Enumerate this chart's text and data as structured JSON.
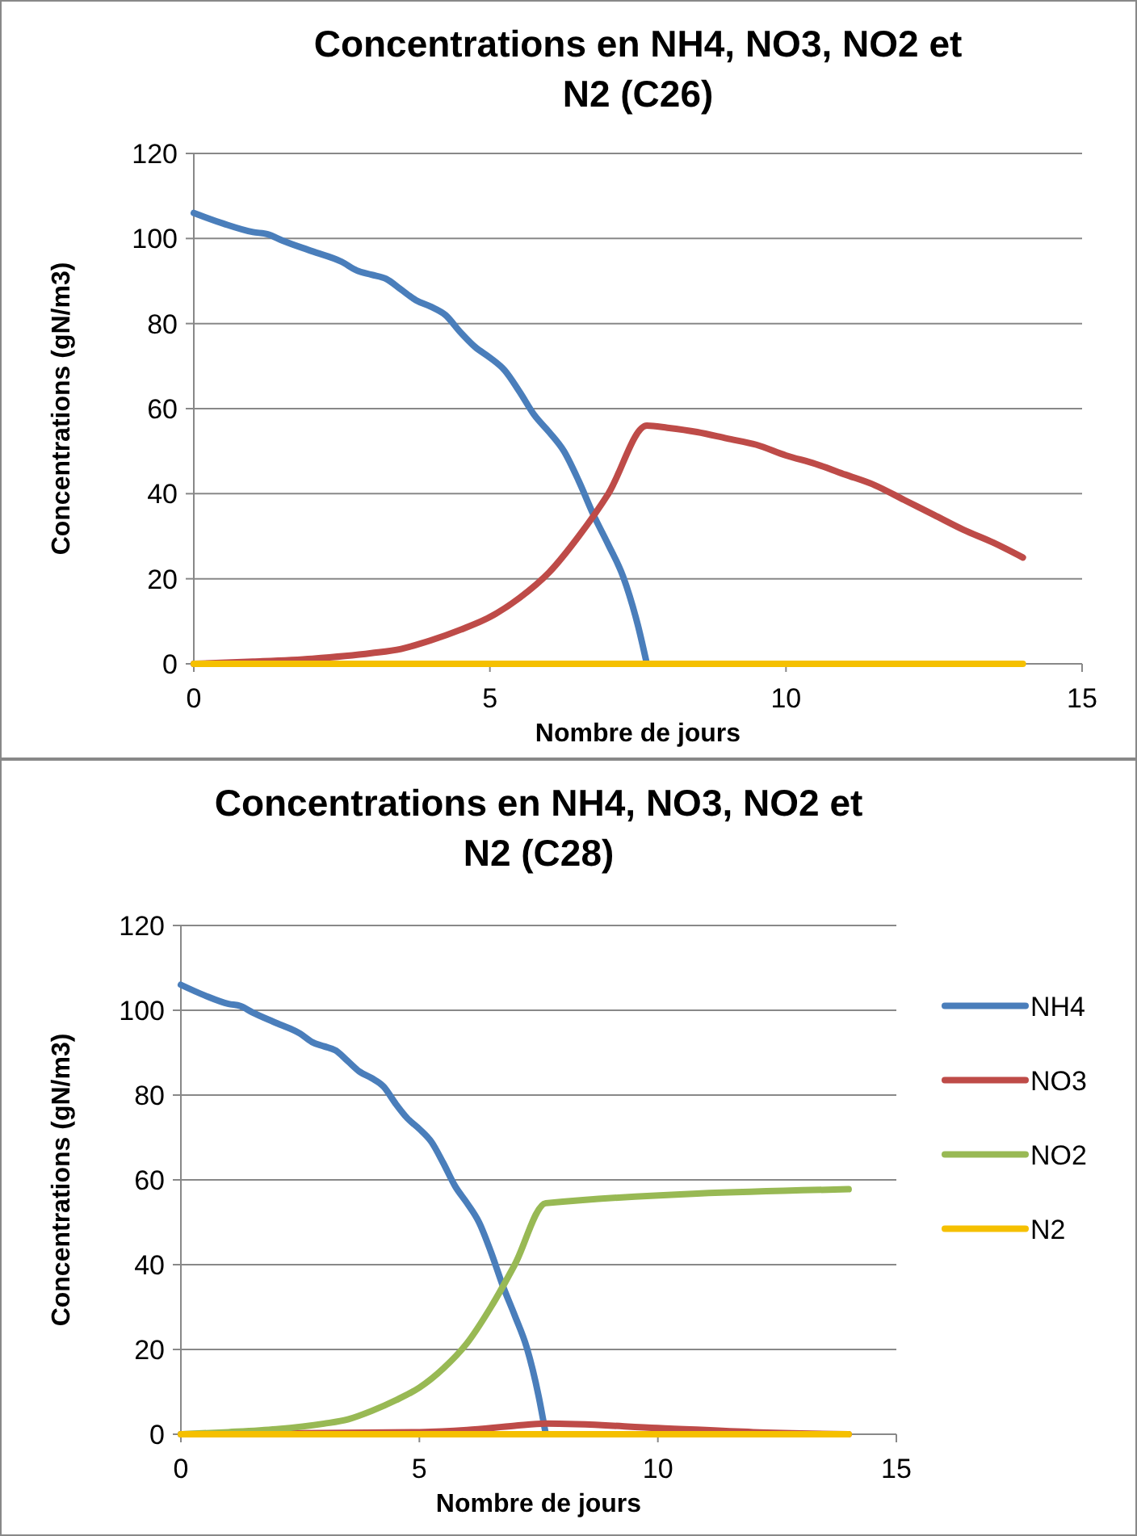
{
  "chart_data": [
    {
      "type": "line",
      "title": "Concentrations en NH4, NO3, NO2 et N2 (C26)",
      "xlabel": "Nombre de jours",
      "ylabel": "Concentrations (gN/m3)",
      "xlim": [
        0,
        15
      ],
      "xticks": [
        0,
        5,
        10,
        15
      ],
      "ylim": [
        0,
        120
      ],
      "yticks": [
        0,
        20,
        40,
        60,
        80,
        100,
        120
      ],
      "grid": "y",
      "legend": false,
      "marker": "none",
      "line_style": "solid",
      "series": [
        {
          "color": "#4a7ebb",
          "x": [
            0,
            0.5,
            1,
            1.25,
            1.5,
            2,
            2.5,
            2.75,
            3,
            3.25,
            3.5,
            3.75,
            4,
            4.25,
            4.5,
            4.75,
            5,
            5.25,
            5.5,
            5.75,
            6,
            6.25,
            6.5,
            6.75,
            7,
            7.25,
            7.5,
            7.65
          ],
          "values": [
            106,
            103.5,
            101.5,
            101,
            99.5,
            97,
            94.5,
            92.5,
            91.5,
            90.5,
            88,
            85.5,
            84,
            82,
            78,
            74.5,
            72,
            69,
            64,
            58.5,
            54.5,
            50,
            43,
            35,
            28,
            20.5,
            9,
            0
          ]
        },
        {
          "color": "#be4b48",
          "x": [
            0,
            1,
            2,
            3,
            3.5,
            4,
            4.5,
            5,
            5.5,
            6,
            6.5,
            7,
            7.65,
            8,
            8.5,
            9,
            9.5,
            10,
            10.5,
            11,
            11.5,
            12,
            12.5,
            13,
            13.5,
            14
          ],
          "values": [
            0,
            0.5,
            1.2,
            2.5,
            3.5,
            5.5,
            8,
            11,
            15.5,
            21.5,
            30,
            40,
            56,
            55.5,
            54.5,
            53,
            51.5,
            49,
            47,
            44.5,
            42,
            38.5,
            35,
            31.5,
            28.5,
            25
          ]
        },
        {
          "color": "#f5c000",
          "x": [
            0,
            14
          ],
          "values": [
            0,
            0
          ]
        }
      ]
    },
    {
      "type": "line",
      "title": "Concentrations en NH4, NO3, NO2 et N2 (C28)",
      "xlabel": "Nombre de jours",
      "ylabel": "Concentrations (gN/m3)",
      "xlim": [
        0,
        15
      ],
      "xticks": [
        0,
        5,
        10,
        15
      ],
      "ylim": [
        0,
        120
      ],
      "yticks": [
        0,
        20,
        40,
        60,
        80,
        100,
        120
      ],
      "grid": "y",
      "legend": "right",
      "marker": "none",
      "line_style": "solid",
      "series": [
        {
          "name": "NH4",
          "color": "#4a7ebb",
          "x": [
            0,
            0.5,
            1,
            1.25,
            1.5,
            2,
            2.5,
            2.75,
            3,
            3.25,
            3.5,
            3.75,
            4,
            4.25,
            4.5,
            4.75,
            5,
            5.25,
            5.5,
            5.75,
            6,
            6.25,
            6.5,
            6.75,
            7,
            7.25,
            7.5,
            7.65
          ],
          "values": [
            106,
            103.5,
            101.5,
            101,
            99.5,
            97,
            94.5,
            92.5,
            91.5,
            90.5,
            88,
            85.5,
            84,
            82,
            78,
            74.5,
            72,
            69,
            64,
            58.5,
            54.5,
            50,
            43,
            35,
            28,
            20.5,
            9,
            0
          ]
        },
        {
          "name": "NO3",
          "color": "#be4b48",
          "x": [
            0,
            5,
            6,
            7,
            7.65,
            10,
            12,
            14
          ],
          "values": [
            0,
            0.5,
            1,
            2,
            2.5,
            1.5,
            0.5,
            0
          ]
        },
        {
          "name": "NO2",
          "color": "#98b954",
          "x": [
            0,
            1,
            2,
            3,
            3.5,
            4,
            4.5,
            5,
            5.5,
            6,
            6.5,
            7,
            7.65,
            14
          ],
          "values": [
            0,
            0.5,
            1.2,
            2.5,
            3.5,
            5.5,
            8,
            11,
            15.5,
            21.5,
            30,
            40,
            54.5,
            57.8
          ]
        },
        {
          "name": "N2",
          "color": "#f5c000",
          "x": [
            0,
            14
          ],
          "values": [
            0,
            0
          ]
        }
      ]
    }
  ]
}
